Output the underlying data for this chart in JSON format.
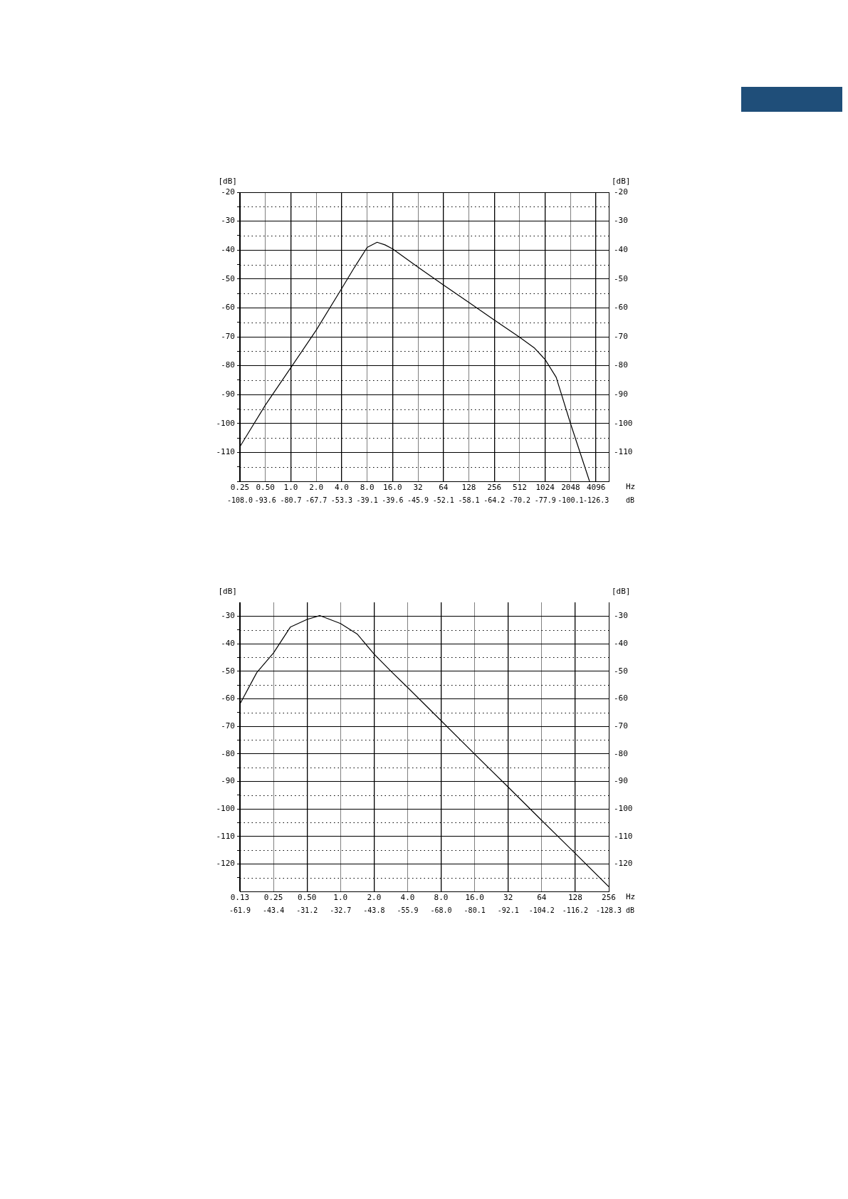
{
  "chart_data": [
    {
      "type": "line",
      "ylabel": "[dB]",
      "y2label": "[dB]",
      "xlabel": "Hz",
      "log": "x",
      "grid": true,
      "legend": false,
      "marker": "none",
      "line_style": "solid",
      "annotations": [
        "-108.0",
        "-93.6",
        "-80.7",
        "-67.7",
        "-53.3",
        "-39.1",
        "-39.6",
        "-45.9",
        "-52.1",
        "-58.1",
        "-64.2",
        "-70.2",
        "-77.9",
        "-100.1",
        "-126.3",
        "dB"
      ],
      "xlim": [
        0.25,
        5793
      ],
      "xticks": [
        0.25,
        {
          "value": 0.5,
          "label": "0.50"
        },
        {
          "value": 1,
          "label": "1.0"
        },
        {
          "value": 2,
          "label": "2.0"
        },
        {
          "value": 4,
          "label": "4.0"
        },
        {
          "value": 8,
          "label": "8.0"
        },
        {
          "value": 16,
          "label": "16.0"
        },
        32,
        64,
        128,
        256,
        512,
        1024,
        2048,
        4096
      ],
      "ylim": [
        -120,
        -20
      ],
      "yticks": [
        -20,
        {
          "value": -25,
          "label": null
        },
        -30,
        {
          "value": -35,
          "label": null
        },
        -40,
        {
          "value": -45,
          "label": null
        },
        -50,
        {
          "value": -55,
          "label": null
        },
        -60,
        {
          "value": -65,
          "label": null
        },
        -70,
        {
          "value": -75,
          "label": null
        },
        -80,
        {
          "value": -85,
          "label": null
        },
        -90,
        {
          "value": -95,
          "label": null
        },
        -100,
        {
          "value": -105,
          "label": null
        },
        -110,
        {
          "value": -115,
          "label": null
        },
        {
          "value": -120,
          "label": null
        }
      ],
      "y2lim": [
        -120,
        -20
      ],
      "y2ticks": [
        -20,
        -30,
        -40,
        -50,
        -60,
        -70,
        -80,
        -90,
        -100,
        -110
      ],
      "series": [
        {
          "color": "#000000",
          "x": [
            0.25,
            0.5,
            1,
            2,
            4,
            5.66,
            8,
            10.5,
            13,
            16,
            32,
            64,
            128,
            256,
            512,
            759,
            1024,
            1382,
            2048,
            3430
          ],
          "values": [
            -108.0,
            -93.6,
            -80.7,
            -67.7,
            -53.3,
            -46,
            -39.1,
            -37.3,
            -38.2,
            -39.6,
            -45.9,
            -52.1,
            -58.1,
            -64.2,
            -70.2,
            -73.8,
            -77.9,
            -84,
            -100.1,
            -120
          ]
        }
      ]
    },
    {
      "type": "line",
      "ylabel": "[dB]",
      "y2label": "[dB]",
      "xlabel": "Hz",
      "log": "x",
      "grid": true,
      "legend": false,
      "marker": "none",
      "line_style": "solid",
      "annotations": [
        "-61.9",
        "-43.4",
        "-31.2",
        "-32.7",
        "-43.8",
        "-55.9",
        "-68.0",
        "-80.1",
        "-92.1",
        "-104.2",
        "-116.2",
        "-128.3",
        "dB"
      ],
      "xlim": [
        0.125,
        256
      ],
      "xticks": [
        {
          "value": 0.125,
          "label": "0.13"
        },
        0.25,
        {
          "value": 0.5,
          "label": "0.50"
        },
        {
          "value": 1,
          "label": "1.0"
        },
        {
          "value": 2,
          "label": "2.0"
        },
        {
          "value": 4,
          "label": "4.0"
        },
        {
          "value": 8,
          "label": "8.0"
        },
        {
          "value": 16,
          "label": "16.0"
        },
        32,
        64,
        128,
        256
      ],
      "ylim": [
        -130,
        -25
      ],
      "yticks": [
        -30,
        {
          "value": -35,
          "label": null
        },
        -40,
        {
          "value": -45,
          "label": null
        },
        -50,
        {
          "value": -55,
          "label": null
        },
        -60,
        {
          "value": -65,
          "label": null
        },
        -70,
        {
          "value": -75,
          "label": null
        },
        -80,
        {
          "value": -85,
          "label": null
        },
        -90,
        {
          "value": -95,
          "label": null
        },
        -100,
        {
          "value": -105,
          "label": null
        },
        -110,
        {
          "value": -115,
          "label": null
        },
        -120,
        {
          "value": -125,
          "label": null
        }
      ],
      "y2lim": [
        -130,
        -25
      ],
      "y2ticks": [
        -30,
        -40,
        -50,
        -60,
        -70,
        -80,
        -90,
        -100,
        -110,
        -120
      ],
      "series": [
        {
          "color": "#000000",
          "x": [
            0.125,
            0.177,
            0.25,
            0.354,
            0.5,
            0.65,
            1,
            1.41,
            2,
            2.83,
            4,
            8,
            16,
            32,
            64,
            128,
            256
          ],
          "values": [
            -61.9,
            -50.5,
            -43.4,
            -34,
            -31.2,
            -29.8,
            -32.7,
            -36.5,
            -43.8,
            -50,
            -55.9,
            -68.0,
            -80.1,
            -92.1,
            -104.2,
            -116.2,
            -128.3
          ]
        }
      ]
    }
  ]
}
